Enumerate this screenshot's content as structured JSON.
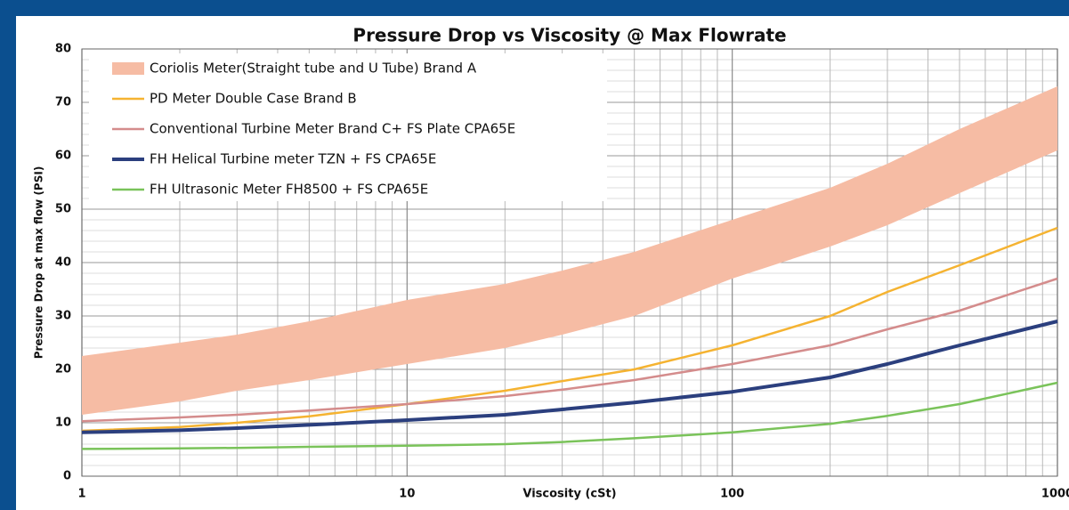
{
  "chart_data": {
    "type": "line",
    "title": "Pressure Drop vs Viscosity @ Max Flowrate",
    "x_label": "Viscosity (cSt)",
    "y_label": "Pressure Drop at max flow (PSI)",
    "x": [
      1,
      2,
      3,
      5,
      10,
      20,
      30,
      50,
      100,
      200,
      300,
      500,
      1000
    ],
    "xlim": [
      1,
      1000
    ],
    "xticks": [
      1,
      10,
      100,
      1000
    ],
    "xscale": "log",
    "ylim": [
      0,
      80
    ],
    "yticks": [
      0,
      10,
      20,
      30,
      40,
      50,
      60,
      70,
      80
    ],
    "grid": true,
    "minor_grid": true,
    "legend": "upper left",
    "series": [
      {
        "name": "Coriolis Meter(Straight tube and U Tube) Brand A",
        "color": "#f6bca4",
        "high": [
          22.5,
          25,
          26.5,
          29,
          33,
          36,
          38.5,
          42,
          48,
          54,
          58.5,
          65,
          73
        ],
        "low": [
          11.5,
          14,
          16,
          18,
          21,
          24,
          26.5,
          30,
          37,
          43,
          47,
          53,
          61
        ]
      },
      {
        "name": "PD Meter Double Case Brand B",
        "color": "#f5b331",
        "values": [
          8.5,
          9.2,
          10,
          11.2,
          13.5,
          16,
          17.8,
          20,
          24.5,
          30,
          34.5,
          39.5,
          46.5
        ]
      },
      {
        "name": "Conventional Turbine Meter Brand C+ FS Plate CPA65E",
        "color": "#d48c8c",
        "values": [
          10.3,
          11,
          11.5,
          12.3,
          13.5,
          15,
          16.2,
          18,
          21,
          24.5,
          27.5,
          31,
          37
        ]
      },
      {
        "name": "FH Helical Turbine meter TZN + FS CPA65E",
        "color": "#2b3f7e",
        "values": [
          8.2,
          8.6,
          9,
          9.6,
          10.5,
          11.5,
          12.5,
          13.8,
          15.8,
          18.5,
          21,
          24.5,
          29
        ]
      },
      {
        "name": "FH Ultrasonic Meter FH8500 + FS CPA65E",
        "color": "#7ac35a",
        "values": [
          5.1,
          5.2,
          5.3,
          5.5,
          5.7,
          6,
          6.4,
          7.1,
          8.2,
          9.8,
          11.3,
          13.5,
          17.5
        ]
      }
    ]
  }
}
